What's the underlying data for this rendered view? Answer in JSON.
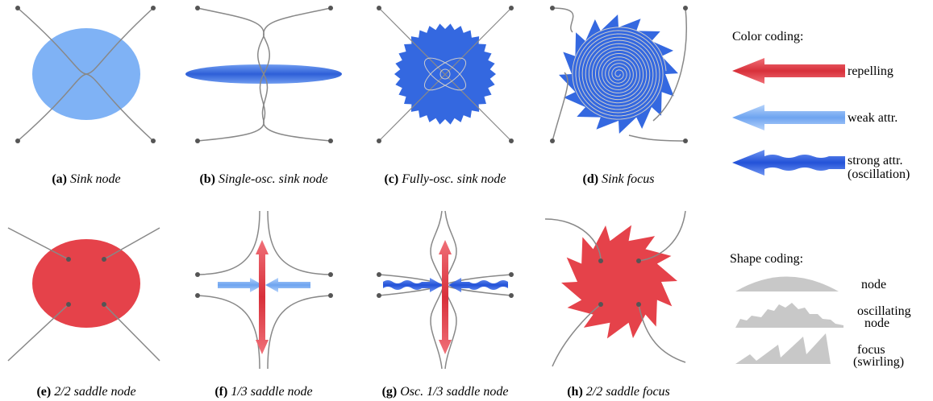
{
  "panels": [
    {
      "label": "(a)",
      "caption": "Sink node"
    },
    {
      "label": "(b)",
      "caption": "Single-osc. sink node"
    },
    {
      "label": "(c)",
      "caption": "Fully-osc. sink node"
    },
    {
      "label": "(d)",
      "caption": "Sink focus"
    },
    {
      "label": "(e)",
      "caption": "2/2 saddle node"
    },
    {
      "label": "(f)",
      "caption": "1/3 saddle node"
    },
    {
      "label": "(g)",
      "caption": "Osc. 1/3 saddle node"
    },
    {
      "label": "(h)",
      "caption": "2/2 saddle focus"
    }
  ],
  "color_coding": {
    "title": "Color coding:",
    "items": [
      {
        "lines": [
          "repelling"
        ]
      },
      {
        "lines": [
          "weak attr."
        ]
      },
      {
        "lines": [
          "strong attr.",
          "(oscillation)"
        ]
      }
    ]
  },
  "shape_coding": {
    "title": "Shape coding:",
    "items": [
      {
        "lines": [
          "node"
        ]
      },
      {
        "lines": [
          "oscillating",
          "node"
        ]
      },
      {
        "lines": [
          "focus",
          "(swirling)"
        ]
      }
    ]
  }
}
